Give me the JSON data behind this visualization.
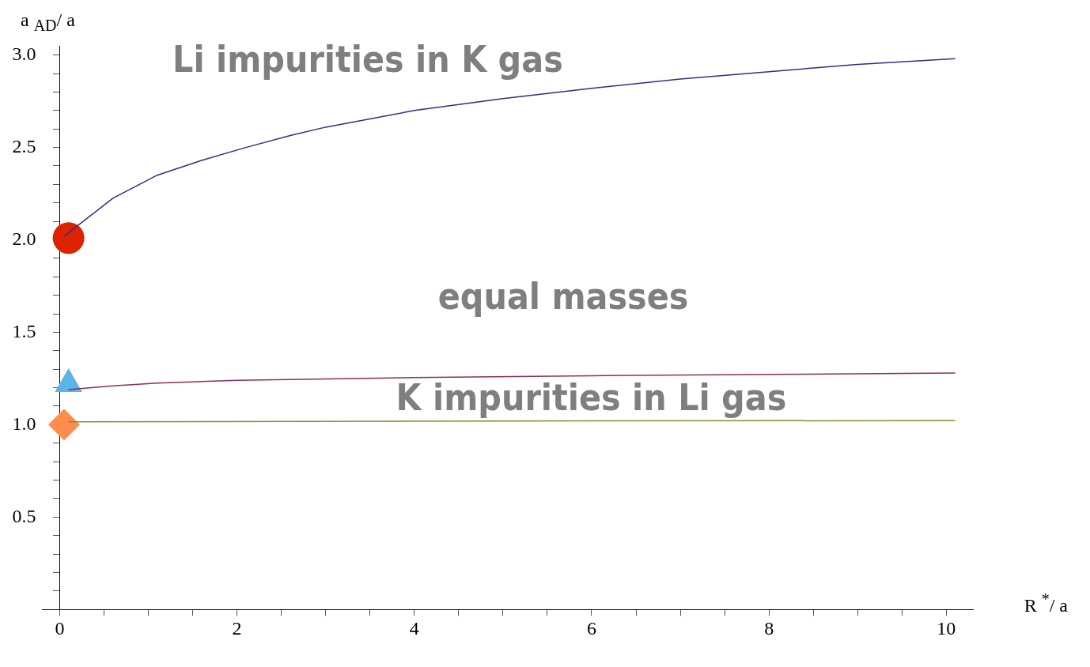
{
  "chart_data": {
    "type": "line",
    "xlabel": "R $^{*}$/ a",
    "ylabel": "a $_{AD}$/ a",
    "xlim": [
      -0.2,
      10.3
    ],
    "ylim": [
      0,
      3.05
    ],
    "xticks": [
      0,
      {
        "value": 0.5,
        "label": null
      },
      {
        "value": 1,
        "label": null
      },
      {
        "value": 1.5,
        "label": null
      },
      2,
      {
        "value": 2.5,
        "label": null
      },
      {
        "value": 3,
        "label": null
      },
      {
        "value": 3.5,
        "label": null
      },
      4,
      {
        "value": 4.5,
        "label": null
      },
      {
        "value": 5,
        "label": null
      },
      {
        "value": 5.5,
        "label": null
      },
      6,
      {
        "value": 6.5,
        "label": null
      },
      {
        "value": 7,
        "label": null
      },
      {
        "value": 7.5,
        "label": null
      },
      8,
      {
        "value": 8.5,
        "label": null
      },
      {
        "value": 9,
        "label": null
      },
      {
        "value": 9.5,
        "label": null
      },
      10
    ],
    "yticks": [
      {
        "value": 0.1,
        "label": null
      },
      {
        "value": 0.2,
        "label": null
      },
      {
        "value": 0.3,
        "label": null
      },
      {
        "value": 0.4,
        "label": null
      },
      0.5,
      {
        "value": 0.6,
        "label": null
      },
      {
        "value": 0.7,
        "label": null
      },
      {
        "value": 0.8,
        "label": null
      },
      {
        "value": 0.9,
        "label": null
      },
      {
        "value": 1,
        "label": "1.0"
      },
      {
        "value": 1.1,
        "label": null
      },
      {
        "value": 1.2,
        "label": null
      },
      {
        "value": 1.3,
        "label": null
      },
      {
        "value": 1.4,
        "label": null
      },
      1.5,
      {
        "value": 1.6,
        "label": null
      },
      {
        "value": 1.7,
        "label": null
      },
      {
        "value": 1.8,
        "label": null
      },
      {
        "value": 1.9,
        "label": null
      },
      {
        "value": 2,
        "label": "2.0"
      },
      {
        "value": 2.1,
        "label": null
      },
      {
        "value": 2.2,
        "label": null
      },
      {
        "value": 2.3,
        "label": null
      },
      {
        "value": 2.4,
        "label": null
      },
      2.5,
      {
        "value": 2.6,
        "label": null
      },
      {
        "value": 2.7,
        "label": null
      },
      {
        "value": 2.8,
        "label": null
      },
      {
        "value": 2.9,
        "label": null
      },
      {
        "value": 3,
        "label": "3.0"
      }
    ],
    "grid": false,
    "legend": false,
    "series": [
      {
        "type": "line",
        "color": "#2e2e8c",
        "marker": "none",
        "x": [
          0.05,
          0.6,
          1.1,
          1.6,
          2.1,
          2.6,
          3,
          4,
          5,
          6,
          7,
          8,
          9,
          10.1
        ],
        "values": [
          2.02,
          2.225,
          2.35,
          2.43,
          2.5,
          2.565,
          2.61,
          2.7,
          2.765,
          2.82,
          2.87,
          2.91,
          2.95,
          2.98
        ]
      },
      {
        "type": "line",
        "color": "#8c2e5a",
        "marker": "none",
        "x": [
          0.1,
          0.6,
          1.1,
          2,
          4,
          6,
          8,
          10.1
        ],
        "values": [
          1.19,
          1.21,
          1.225,
          1.24,
          1.255,
          1.265,
          1.272,
          1.28
        ]
      },
      {
        "type": "line",
        "color": "#8c8a2e",
        "marker": "none",
        "x": [
          0.1,
          5,
          10.1
        ],
        "values": [
          1.015,
          1.02,
          1.022
        ]
      },
      {
        "type": "scatter",
        "color": "#dd2200",
        "marker": "circle",
        "x": [
          0.1
        ],
        "values": [
          2.01
        ]
      },
      {
        "type": "scatter",
        "color": "#5ab4e5",
        "marker": "triangle",
        "x": [
          0.1
        ],
        "values": [
          1.22
        ]
      },
      {
        "type": "scatter",
        "color": "#ff8c4a",
        "marker": "diamond",
        "x": [
          0.05
        ],
        "values": [
          1.0
        ]
      }
    ],
    "annotations": [
      "Li impurities in K gas",
      "equal masses",
      "K impurities in Li gas"
    ]
  }
}
